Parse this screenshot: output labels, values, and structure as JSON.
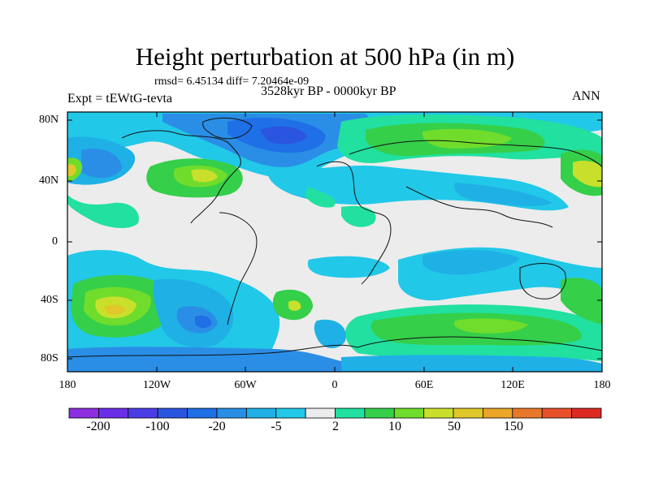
{
  "title": "Height perturbation at 500 hPa (in m)",
  "stats_line": "rmsd= 6.45134 diff= 7.20464e-09",
  "period": "3528kyr BP - 0000kyr BP",
  "experiment": "Expt = tEWtG-tevta",
  "season": "ANN",
  "lat_labels": [
    "80N",
    "40N",
    "0",
    "40S",
    "80S"
  ],
  "lon_labels": [
    "180",
    "120W",
    "60W",
    "0",
    "60E",
    "120E",
    "180"
  ],
  "colorbar": {
    "labels": [
      "-200",
      "-100",
      "-20",
      "-5",
      "2",
      "10",
      "50",
      "150"
    ],
    "colors": [
      "#8c2ee0",
      "#6a2ee6",
      "#4b3de6",
      "#2a55e0",
      "#1f6fe6",
      "#2a8ee6",
      "#1fb0e6",
      "#22c8e8",
      "#ececec",
      "#21e0a0",
      "#35cf4a",
      "#70dc2c",
      "#c8e02c",
      "#e0c82a",
      "#eaa52a",
      "#e8782a",
      "#e8502a",
      "#dc2a22"
    ]
  }
}
